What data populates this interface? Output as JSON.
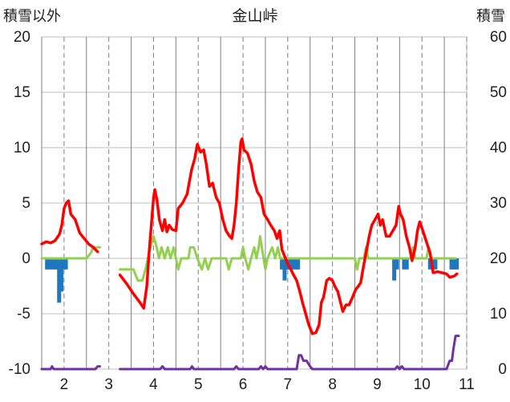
{
  "chart_data": {
    "type": "line",
    "title": "金山峠",
    "ylabel_left": "積雪以外",
    "ylabel_right": "積雪",
    "xlim": [
      1.5,
      11.0
    ],
    "ylim_left": [
      -10,
      20
    ],
    "ylim_right": [
      0,
      60
    ],
    "x_ticks": [
      2,
      3,
      4,
      5,
      6,
      7,
      8,
      9,
      10,
      11
    ],
    "y_ticks_left": [
      20,
      15,
      10,
      5,
      0,
      -5,
      -10
    ],
    "y_ticks_right": [
      60,
      50,
      40,
      30,
      20,
      10,
      0
    ],
    "grid": "dashed-vertical",
    "colors": {
      "temperature": "#ff0000",
      "wind": "#92d050",
      "precip": "#1f77c0",
      "snow": "#7030a0",
      "grid": "#7f7f7f",
      "axis": "#bfbfbf"
    },
    "series": [
      {
        "key": "temperature",
        "axis": "left",
        "style": "line",
        "segments": [
          [
            [
              1.5,
              1.3
            ],
            [
              1.6,
              1.5
            ],
            [
              1.7,
              1.4
            ],
            [
              1.8,
              1.6
            ],
            [
              1.9,
              2.2
            ],
            [
              1.95,
              3.0
            ],
            [
              2.0,
              4.5
            ],
            [
              2.05,
              5.0
            ],
            [
              2.1,
              5.2
            ],
            [
              2.15,
              4.0
            ],
            [
              2.25,
              3.5
            ],
            [
              2.35,
              2.3
            ],
            [
              2.45,
              1.8
            ],
            [
              2.55,
              1.3
            ],
            [
              2.65,
              1.0
            ],
            [
              2.75,
              0.6
            ]
          ],
          [
            [
              3.25,
              -1.5
            ],
            [
              3.4,
              -2.3
            ],
            [
              3.55,
              -3.2
            ],
            [
              3.7,
              -4.0
            ],
            [
              3.78,
              -4.5
            ],
            [
              3.85,
              -2.5
            ],
            [
              3.9,
              0.5
            ],
            [
              3.95,
              3.0
            ],
            [
              4.0,
              5.5
            ],
            [
              4.03,
              6.2
            ],
            [
              4.08,
              5.2
            ],
            [
              4.13,
              3.5
            ],
            [
              4.2,
              2.5
            ],
            [
              4.25,
              3.5
            ],
            [
              4.3,
              2.4
            ],
            [
              4.35,
              3.0
            ],
            [
              4.42,
              2.6
            ],
            [
              4.5,
              2.5
            ],
            [
              4.55,
              4.5
            ],
            [
              4.65,
              5.0
            ],
            [
              4.75,
              5.8
            ],
            [
              4.85,
              8.0
            ],
            [
              4.92,
              9.0
            ],
            [
              4.98,
              10.3
            ],
            [
              5.05,
              9.6
            ],
            [
              5.12,
              9.8
            ],
            [
              5.18,
              8.5
            ],
            [
              5.25,
              6.5
            ],
            [
              5.32,
              6.8
            ],
            [
              5.4,
              5.5
            ],
            [
              5.47,
              5.0
            ],
            [
              5.55,
              3.5
            ],
            [
              5.62,
              2.5
            ],
            [
              5.7,
              2.0
            ],
            [
              5.75,
              1.8
            ],
            [
              5.8,
              3.0
            ],
            [
              5.85,
              5.0
            ],
            [
              5.9,
              8.0
            ],
            [
              5.95,
              10.5
            ],
            [
              5.98,
              10.8
            ],
            [
              6.02,
              9.8
            ],
            [
              6.1,
              9.5
            ],
            [
              6.18,
              8.5
            ],
            [
              6.25,
              7.0
            ],
            [
              6.32,
              6.0
            ],
            [
              6.4,
              5.5
            ],
            [
              6.47,
              4.0
            ],
            [
              6.55,
              3.5
            ],
            [
              6.62,
              3.0
            ],
            [
              6.7,
              2.5
            ],
            [
              6.76,
              1.8
            ],
            [
              6.82,
              2.5
            ],
            [
              6.87,
              0.8
            ],
            [
              6.93,
              0.2
            ],
            [
              7.0,
              -0.5
            ],
            [
              7.07,
              -1.0
            ],
            [
              7.13,
              -1.5
            ],
            [
              7.2,
              -2.0
            ],
            [
              7.27,
              -3.0
            ],
            [
              7.33,
              -4.0
            ],
            [
              7.4,
              -5.0
            ],
            [
              7.47,
              -6.0
            ],
            [
              7.55,
              -6.8
            ],
            [
              7.63,
              -6.7
            ],
            [
              7.7,
              -6.0
            ],
            [
              7.75,
              -4.0
            ],
            [
              7.8,
              -3.5
            ],
            [
              7.87,
              -2.0
            ],
            [
              7.93,
              -1.8
            ],
            [
              8.0,
              -2.0
            ],
            [
              8.05,
              -2.5
            ],
            [
              8.12,
              -3.0
            ],
            [
              8.18,
              -4.0
            ],
            [
              8.23,
              -4.8
            ],
            [
              8.3,
              -4.2
            ],
            [
              8.37,
              -4.2
            ],
            [
              8.45,
              -3.5
            ],
            [
              8.52,
              -2.8
            ],
            [
              8.58,
              -2.5
            ],
            [
              8.63,
              -2.2
            ],
            [
              8.68,
              -1.0
            ],
            [
              8.75,
              0.5
            ],
            [
              8.82,
              2.0
            ],
            [
              8.88,
              3.0
            ],
            [
              8.95,
              3.5
            ],
            [
              9.02,
              4.0
            ],
            [
              9.07,
              3.0
            ],
            [
              9.12,
              3.5
            ],
            [
              9.2,
              2.0
            ],
            [
              9.28,
              2.0
            ],
            [
              9.35,
              2.5
            ],
            [
              9.42,
              3.0
            ],
            [
              9.48,
              4.7
            ],
            [
              9.52,
              4.0
            ],
            [
              9.58,
              3.5
            ],
            [
              9.65,
              2.0
            ],
            [
              9.72,
              1.0
            ],
            [
              9.78,
              -0.2
            ],
            [
              9.85,
              1.0
            ],
            [
              9.9,
              2.5
            ],
            [
              9.95,
              3.3
            ],
            [
              10.02,
              2.5
            ],
            [
              10.1,
              1.5
            ],
            [
              10.18,
              0.5
            ],
            [
              10.25,
              -1.3
            ],
            [
              10.35,
              -1.2
            ],
            [
              10.45,
              -1.3
            ],
            [
              10.55,
              -1.4
            ],
            [
              10.62,
              -1.7
            ],
            [
              10.72,
              -1.6
            ],
            [
              10.78,
              -1.4
            ]
          ]
        ]
      },
      {
        "key": "wind",
        "axis": "left",
        "style": "line",
        "segments": [
          [
            [
              1.5,
              0
            ],
            [
              2.5,
              0
            ],
            [
              2.6,
              0.5
            ],
            [
              2.65,
              1.0
            ],
            [
              2.8,
              1.0
            ]
          ],
          [
            [
              3.25,
              -1.0
            ],
            [
              3.55,
              -1.0
            ],
            [
              3.65,
              -2.0
            ],
            [
              3.75,
              -2.0
            ],
            [
              3.82,
              -1.0
            ],
            [
              3.9,
              0.5
            ],
            [
              4.0,
              2.0
            ],
            [
              4.07,
              1.0
            ],
            [
              4.12,
              0
            ],
            [
              4.18,
              1.0
            ],
            [
              4.25,
              0
            ],
            [
              4.32,
              1.0
            ],
            [
              4.38,
              0
            ],
            [
              4.45,
              1.0
            ],
            [
              4.5,
              0
            ],
            [
              4.55,
              -1.0
            ],
            [
              4.62,
              0
            ],
            [
              4.78,
              0
            ],
            [
              4.82,
              1.0
            ],
            [
              4.9,
              1.0
            ],
            [
              4.98,
              0
            ],
            [
              5.08,
              -1.0
            ],
            [
              5.15,
              0
            ],
            [
              5.22,
              -1.0
            ],
            [
              5.3,
              0
            ],
            [
              5.62,
              0
            ],
            [
              5.68,
              -1.0
            ],
            [
              5.75,
              0
            ],
            [
              5.95,
              0
            ],
            [
              6.0,
              1.0
            ],
            [
              6.05,
              0
            ],
            [
              6.12,
              -1.0
            ],
            [
              6.18,
              0
            ],
            [
              6.25,
              1.0
            ],
            [
              6.3,
              0
            ],
            [
              6.35,
              1.0
            ],
            [
              6.38,
              2.0
            ],
            [
              6.42,
              1.0
            ],
            [
              6.46,
              0
            ],
            [
              6.5,
              -1.0
            ],
            [
              6.55,
              0
            ],
            [
              6.65,
              1.0
            ],
            [
              6.72,
              0
            ],
            [
              6.78,
              1.0
            ],
            [
              6.83,
              0
            ],
            [
              8.5,
              0
            ],
            [
              8.55,
              -1.0
            ],
            [
              8.6,
              0
            ],
            [
              8.7,
              0
            ],
            [
              8.75,
              1.0
            ],
            [
              8.8,
              0
            ],
            [
              9.75,
              0
            ],
            [
              9.8,
              1.0
            ],
            [
              9.85,
              0
            ],
            [
              10.1,
              0
            ],
            [
              10.15,
              1.0
            ],
            [
              10.2,
              0
            ],
            [
              10.75,
              0
            ]
          ]
        ]
      },
      {
        "key": "precip",
        "axis": "left",
        "style": "bars",
        "points": [
          [
            1.62,
            -1.0
          ],
          [
            1.7,
            -1.0
          ],
          [
            1.77,
            -1.0
          ],
          [
            1.83,
            -1.0
          ],
          [
            1.89,
            -4.0
          ],
          [
            1.94,
            -3.0
          ],
          [
            1.99,
            -1.0
          ],
          [
            2.04,
            -1.0
          ],
          [
            6.87,
            -1.0
          ],
          [
            6.93,
            -2.0
          ],
          [
            6.99,
            -1.0
          ],
          [
            7.05,
            -1.0
          ],
          [
            7.11,
            -1.0
          ],
          [
            7.17,
            -1.0
          ],
          [
            7.23,
            -1.0
          ],
          [
            9.38,
            -2.0
          ],
          [
            9.44,
            -1.0
          ],
          [
            9.6,
            -1.0
          ],
          [
            9.66,
            -1.0
          ],
          [
            10.18,
            -1.0
          ],
          [
            10.23,
            -1.0
          ],
          [
            10.3,
            -1.0
          ],
          [
            10.66,
            -1.0
          ],
          [
            10.72,
            -1.0
          ],
          [
            10.78,
            -1.0
          ]
        ]
      },
      {
        "key": "snow",
        "axis": "right",
        "style": "line",
        "segments": [
          [
            [
              1.5,
              0
            ],
            [
              1.7,
              0
            ],
            [
              1.73,
              0.5
            ],
            [
              1.77,
              0
            ],
            [
              2.7,
              0
            ],
            [
              2.75,
              0.5
            ],
            [
              2.8,
              0.5
            ]
          ],
          [
            [
              3.25,
              0
            ],
            [
              4.15,
              0
            ],
            [
              4.2,
              0.5
            ],
            [
              4.25,
              0
            ],
            [
              4.82,
              0
            ],
            [
              4.86,
              0.5
            ],
            [
              4.9,
              0
            ],
            [
              5.8,
              0
            ],
            [
              5.85,
              0.5
            ],
            [
              5.9,
              0
            ],
            [
              6.35,
              0
            ],
            [
              6.4,
              0.5
            ],
            [
              6.45,
              0
            ],
            [
              6.5,
              0.5
            ],
            [
              6.55,
              0
            ],
            [
              7.2,
              0
            ],
            [
              7.25,
              2.5
            ],
            [
              7.3,
              2.5
            ],
            [
              7.35,
              1.5
            ],
            [
              7.42,
              1.5
            ],
            [
              7.5,
              0.5
            ],
            [
              7.55,
              0
            ],
            [
              9.4,
              0
            ],
            [
              9.45,
              0.5
            ],
            [
              9.5,
              0
            ],
            [
              9.55,
              0.5
            ],
            [
              9.6,
              0
            ],
            [
              10.55,
              0
            ],
            [
              10.62,
              1.5
            ],
            [
              10.67,
              1.5
            ],
            [
              10.7,
              3.5
            ],
            [
              10.75,
              6.0
            ],
            [
              10.82,
              6.0
            ]
          ]
        ]
      }
    ]
  }
}
